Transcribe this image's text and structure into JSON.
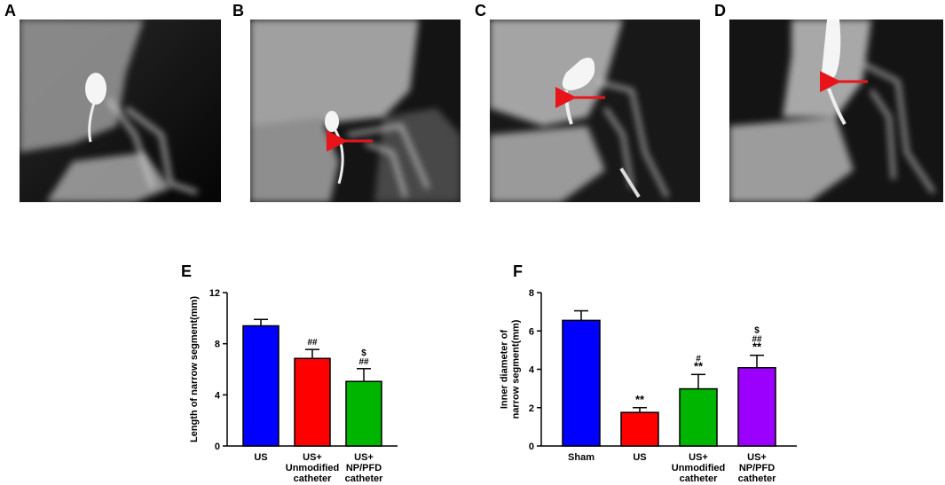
{
  "panels": {
    "A": "A",
    "B": "B",
    "C": "C",
    "D": "D",
    "E": "E",
    "F": "F"
  },
  "colors": {
    "arrow": "#e8141a",
    "blue": "#0000ff",
    "red": "#ff0000",
    "green": "#00b500",
    "purple": "#9b00ff"
  },
  "chart_data": [
    {
      "type": "bar",
      "panel": "E",
      "categories": [
        [
          "US"
        ],
        [
          "US+",
          "Unmodified",
          "catheter"
        ],
        [
          "US+",
          "NP/PFD",
          "catheter"
        ]
      ],
      "values": [
        9.4,
        6.85,
        5.05
      ],
      "errors": [
        0.5,
        0.7,
        1.0
      ],
      "colors": [
        "#0000ff",
        "#ff0000",
        "#00b500"
      ],
      "annotations": [
        [],
        [
          "##"
        ],
        [
          "$",
          "##"
        ]
      ],
      "ylabel": [
        "Length of narrow segment(mm)"
      ],
      "ylim": [
        0,
        12
      ],
      "yticks": [
        0,
        4,
        8,
        12
      ]
    },
    {
      "type": "bar",
      "panel": "F",
      "categories": [
        [
          "Sham"
        ],
        [
          "US"
        ],
        [
          "US+",
          "Unmodified",
          "catheter"
        ],
        [
          "US+",
          "NP/PFD",
          "catheter"
        ]
      ],
      "values": [
        6.55,
        1.75,
        2.98,
        4.08
      ],
      "errors": [
        0.5,
        0.25,
        0.75,
        0.65
      ],
      "colors": [
        "#0000ff",
        "#ff0000",
        "#00b500",
        "#9b00ff"
      ],
      "annotations": [
        [],
        [
          "**"
        ],
        [
          "#",
          "**"
        ],
        [
          "$",
          "##",
          "**"
        ]
      ],
      "ylabel": [
        "Inner diameter of",
        "narrow segment(mm)"
      ],
      "ylim": [
        0,
        8
      ],
      "yticks": [
        0,
        2,
        4,
        6,
        8
      ]
    }
  ]
}
